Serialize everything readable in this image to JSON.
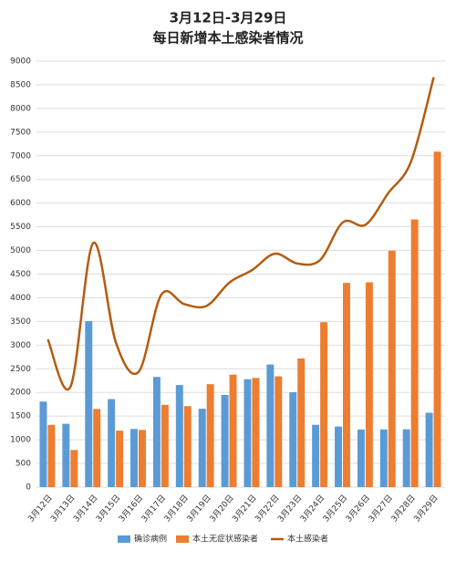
{
  "chart_data": {
    "type": "bar-line",
    "title": "3月12日-3月29日",
    "subtitle": "每日新增本土感染者情况",
    "categories": [
      "3月12日",
      "3月13日",
      "3月14日",
      "3月15日",
      "3月16日",
      "3月17日",
      "3月18日",
      "3月19日",
      "3月20日",
      "3月21日",
      "3月22日",
      "3月23日",
      "3月24日",
      "3月25日",
      "3月26日",
      "3月27日",
      "3月28日",
      "3月29日"
    ],
    "series": [
      {
        "name": "确诊病例",
        "type": "bar",
        "color": "#5b9bd5",
        "values": [
          1807,
          1337,
          3507,
          1860,
          1228,
          2328,
          2157,
          1656,
          1947,
          2279,
          2591,
          2005,
          1316,
          1280,
          1217,
          1219,
          1222,
          1571
        ]
      },
      {
        "name": "本土无症状感染者",
        "type": "bar",
        "color": "#ed7d31",
        "values": [
          1315,
          785,
          1650,
          1193,
          1208,
          1737,
          1711,
          2175,
          2375,
          2306,
          2340,
          2718,
          3484,
          4315,
          4327,
          4994,
          5655,
          7088
        ]
      },
      {
        "name": "本土感染者",
        "type": "line",
        "color": "#b35c10",
        "values": [
          3122,
          2122,
          5157,
          3053,
          2436,
          4065,
          3868,
          3831,
          4322,
          4585,
          4931,
          4723,
          4800,
          5595,
          5544,
          6213,
          6877,
          8659
        ]
      }
    ],
    "ylim": [
      0,
      9000
    ],
    "yticks": [
      0,
      500,
      1000,
      1500,
      2000,
      2500,
      3000,
      3500,
      4000,
      4500,
      5000,
      5500,
      6000,
      6500,
      7000,
      7500,
      8000,
      8500,
      9000
    ],
    "grid": true,
    "legend": "bottom"
  }
}
